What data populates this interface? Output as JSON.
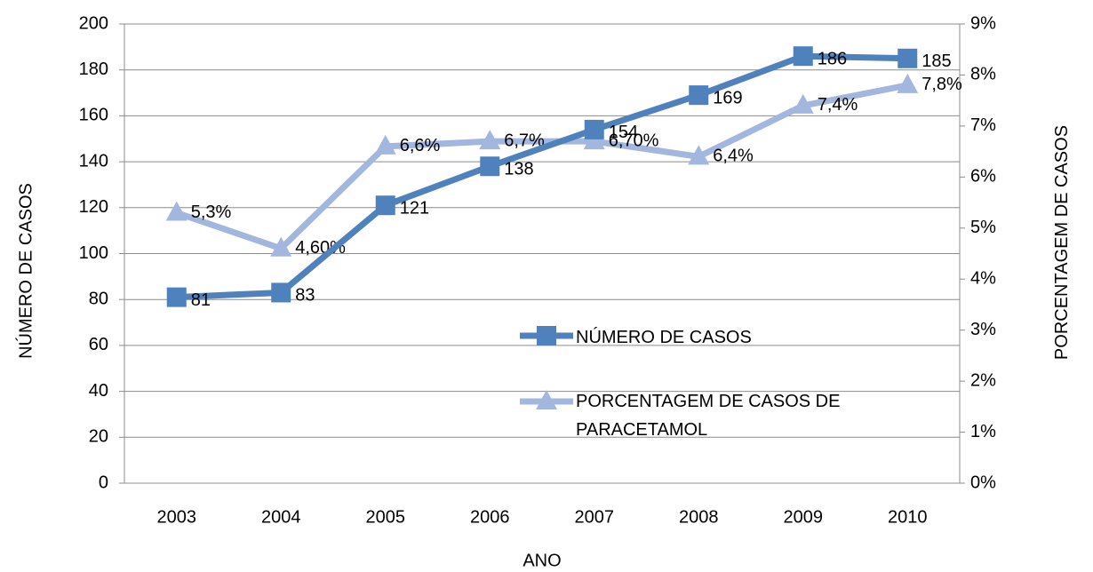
{
  "chart_data": {
    "type": "line",
    "xlabel": "ANO",
    "ylabel": "NÚMERO DE CASOS",
    "y2label": "PORCENTAGEM DE CASOS",
    "categories": [
      "2003",
      "2004",
      "2005",
      "2006",
      "2007",
      "2008",
      "2009",
      "2010"
    ],
    "series": [
      {
        "name": "NÚMERO DE CASOS",
        "color": "#4f81bd",
        "marker": "square",
        "values": [
          81,
          83,
          121,
          138,
          154,
          169,
          186,
          185
        ]
      },
      {
        "name": "PORCENTAGEM DE CASOS DE PARACETAMOL",
        "color": "#a3b6de",
        "marker": "triangle",
        "axis": "y2",
        "values": [
          5.3,
          4.6,
          6.6,
          6.7,
          6.7,
          6.4,
          7.4,
          7.8
        ],
        "value_labels": [
          "5,3%",
          "4,60%",
          "6,6%",
          "6,7%",
          "6,70%",
          "6,4%",
          "7,4%",
          "7,8%"
        ]
      }
    ],
    "ylim": [
      0,
      200
    ],
    "yticks": [
      0,
      20,
      40,
      60,
      80,
      100,
      120,
      140,
      160,
      180,
      200
    ],
    "y2lim": [
      0,
      9
    ],
    "y2ticks": [
      {
        "value": 0,
        "label": "0%"
      },
      {
        "value": 1,
        "label": "1%"
      },
      {
        "value": 2,
        "label": "2%"
      },
      {
        "value": 3,
        "label": "3%"
      },
      {
        "value": 4,
        "label": "4%"
      },
      {
        "value": 5,
        "label": "5%"
      },
      {
        "value": 6,
        "label": "6%"
      },
      {
        "value": 7,
        "label": "7%"
      },
      {
        "value": 8,
        "label": "8%"
      },
      {
        "value": 9,
        "label": "9%"
      }
    ],
    "grid": true
  }
}
